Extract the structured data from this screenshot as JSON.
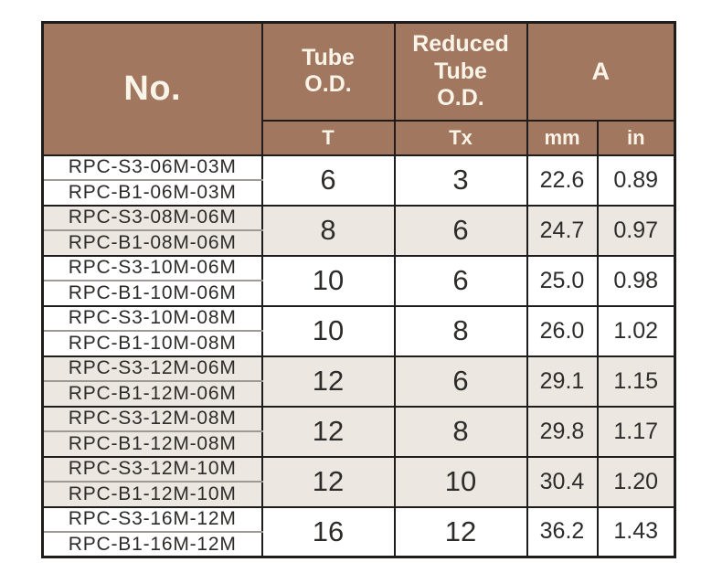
{
  "table": {
    "colors": {
      "header_bg": "#a1785f",
      "header_text": "#f9f3e8",
      "shaded_row_bg": "#ece8e1",
      "plain_row_bg": "#ffffff",
      "data_text": "#2e2c2a",
      "border_dark": "#1f1d1b",
      "sub_divider": "#9d9a95"
    },
    "header": {
      "no": "No.",
      "tube_od": "Tube\nO.D.",
      "reduced_tube_od": "Reduced\nTube\nO.D.",
      "a": "A",
      "sub_t": "T",
      "sub_tx": "Tx",
      "sub_mm": "mm",
      "sub_in": "in"
    },
    "rows": [
      {
        "part_s3": "RPC-S3-06M-03M",
        "part_b1": "RPC-B1-06M-03M",
        "t": "6",
        "tx": "3",
        "mm": "22.6",
        "in": "0.89",
        "shaded": false
      },
      {
        "part_s3": "RPC-S3-08M-06M",
        "part_b1": "RPC-B1-08M-06M",
        "t": "8",
        "tx": "6",
        "mm": "24.7",
        "in": "0.97",
        "shaded": true
      },
      {
        "part_s3": "RPC-S3-10M-06M",
        "part_b1": "RPC-B1-10M-06M",
        "t": "10",
        "tx": "6",
        "mm": "25.0",
        "in": "0.98",
        "shaded": false
      },
      {
        "part_s3": "RPC-S3-10M-08M",
        "part_b1": "RPC-B1-10M-08M",
        "t": "10",
        "tx": "8",
        "mm": "26.0",
        "in": "1.02",
        "shaded": false
      },
      {
        "part_s3": "RPC-S3-12M-06M",
        "part_b1": "RPC-B1-12M-06M",
        "t": "12",
        "tx": "6",
        "mm": "29.1",
        "in": "1.15",
        "shaded": true
      },
      {
        "part_s3": "RPC-S3-12M-08M",
        "part_b1": "RPC-B1-12M-08M",
        "t": "12",
        "tx": "8",
        "mm": "29.8",
        "in": "1.17",
        "shaded": true
      },
      {
        "part_s3": "RPC-S3-12M-10M",
        "part_b1": "RPC-B1-12M-10M",
        "t": "12",
        "tx": "10",
        "mm": "30.4",
        "in": "1.20",
        "shaded": true
      },
      {
        "part_s3": "RPC-S3-16M-12M",
        "part_b1": "RPC-B1-16M-12M",
        "t": "16",
        "tx": "12",
        "mm": "36.2",
        "in": "1.43",
        "shaded": false
      }
    ]
  }
}
